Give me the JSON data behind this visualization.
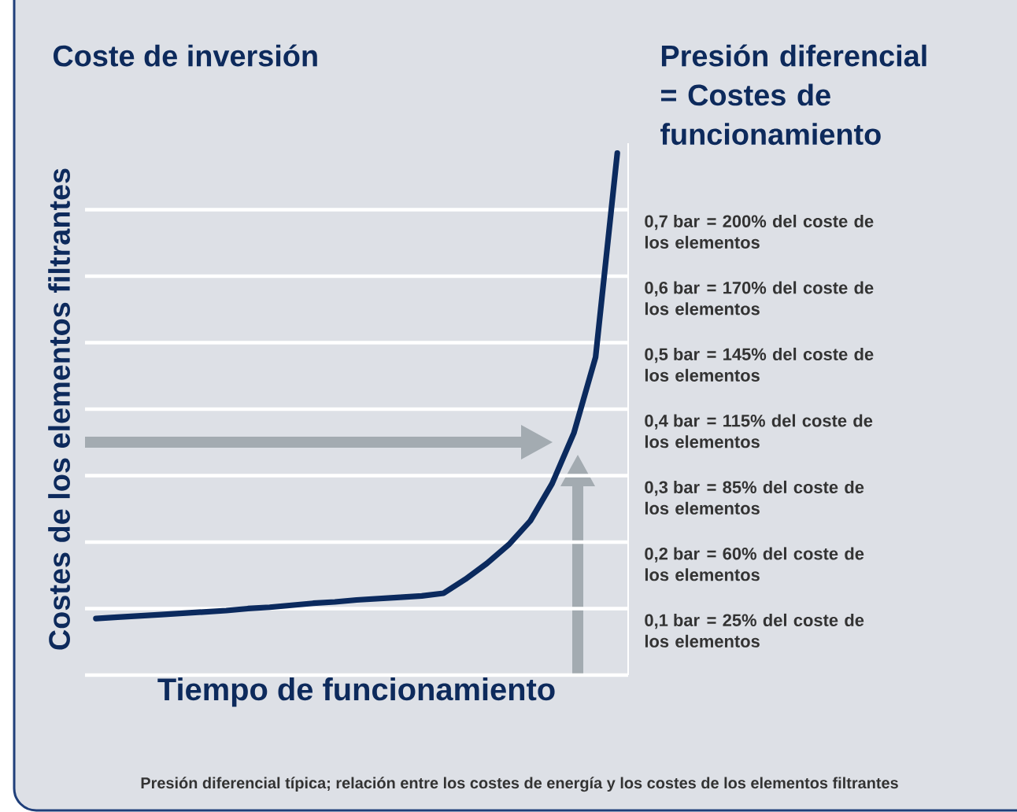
{
  "chart_data": {
    "type": "line",
    "title": "Coste de inversión",
    "subtitle": "Presión diferencial = Costes de funcionamiento",
    "xlabel": "Tiempo de funcionamiento",
    "ylabel": "Costes de los elementos filtrantes",
    "annotations": [
      "Presión diferencial típica; relación entre los costes de energía y los costes de los elementos filtrantes",
      "= 25% del coste de los elementos",
      "= 60% del coste de los elementos",
      "= 85% del coste de los elementos",
      "= 115% del coste de los elementos",
      "= 145% del coste de los elementos",
      "= 170% del coste de los elementos",
      "= 200% del coste de los elementos"
    ],
    "categories": [
      null,
      null,
      null,
      null,
      null,
      null,
      null,
      null,
      null,
      null,
      null,
      null,
      null,
      null,
      null,
      null,
      null,
      null,
      null,
      null,
      null,
      null,
      null,
      null,
      null
    ],
    "values": [
      0.085,
      0.087,
      0.089,
      0.091,
      0.093,
      0.095,
      0.097,
      0.1,
      0.102,
      0.105,
      0.108,
      0.11,
      0.113,
      0.115,
      0.117,
      0.119,
      0.123,
      0.144,
      0.168,
      0.196,
      0.232,
      0.288,
      0.364,
      0.478,
      0.785
    ],
    "color": "#0b2a5e",
    "marker": "none",
    "grid": "y",
    "ylim": [
      0,
      0.8
    ],
    "yticks": [
      {
        "value": 0,
        "label": null
      },
      {
        "value": 0.1,
        "label": "0,1 bar"
      },
      {
        "value": 0.2,
        "label": "0,2 bar"
      },
      {
        "value": 0.3,
        "label": "0,3 bar"
      },
      {
        "value": 0.4,
        "label": "0,4 bar"
      },
      {
        "value": 0.5,
        "label": "0,5 bar"
      },
      {
        "value": 0.6,
        "label": "0,6 bar"
      },
      {
        "value": 0.7,
        "label": "0,7 bar"
      }
    ]
  }
}
